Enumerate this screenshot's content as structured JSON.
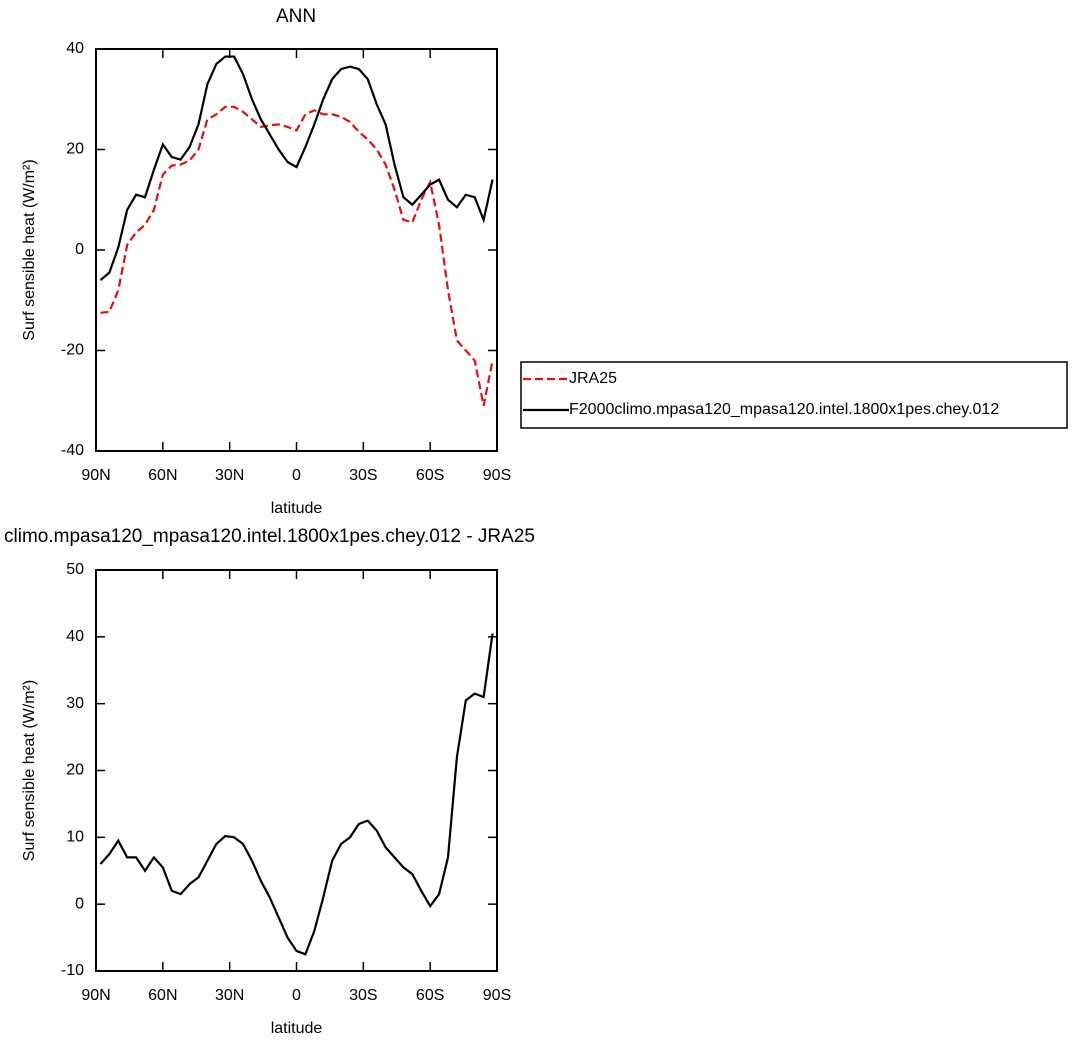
{
  "chart_data": [
    {
      "type": "line",
      "title": "ANN",
      "xlabel": "latitude",
      "ylabel": "Surf sensible heat (W/m²)",
      "x": [
        88,
        84,
        80,
        76,
        72,
        68,
        64,
        60,
        56,
        52,
        48,
        44,
        40,
        36,
        32,
        28,
        24,
        20,
        16,
        12,
        8,
        4,
        0,
        -4,
        -8,
        -12,
        -16,
        -20,
        -24,
        -28,
        -32,
        -36,
        -40,
        -44,
        -48,
        -52,
        -56,
        -60,
        -64,
        -68,
        -72,
        -76,
        -80,
        -84,
        -88
      ],
      "series": [
        {
          "name": "JRA25",
          "color": "#e01010",
          "line_style": "dashed",
          "values": [
            -12.5,
            -12.3,
            -8,
            1,
            3.5,
            5,
            8,
            15,
            16.8,
            17,
            17.8,
            20,
            26,
            27,
            28.5,
            28.5,
            27.5,
            26,
            24.5,
            24.8,
            25,
            24.5,
            23.8,
            27,
            27.8,
            27,
            27,
            26.5,
            25.5,
            23.5,
            22,
            20,
            17,
            12,
            6,
            5.5,
            10,
            13.5,
            5,
            -8,
            -18,
            -20,
            -22,
            -31,
            -22
          ]
        },
        {
          "name": "F2000climo.mpasa120_mpasa120.intel.1800x1pes.chey.012",
          "color": "#000000",
          "line_style": "solid",
          "values": [
            -6,
            -4.5,
            0.5,
            8,
            11,
            10.5,
            16,
            21,
            18.5,
            18,
            20.5,
            25,
            33,
            37,
            38.5,
            38.5,
            35,
            30,
            26,
            23,
            20,
            17.5,
            16.5,
            20.5,
            25,
            30,
            34,
            36,
            36.5,
            36,
            34,
            29,
            25,
            17,
            10.5,
            9,
            11,
            13,
            14,
            10,
            8.5,
            11,
            10.5,
            6,
            14
          ]
        }
      ],
      "xlim": [
        90,
        -90
      ],
      "xticks": [
        {
          "value": 90,
          "label": "90N"
        },
        {
          "value": 60,
          "label": "60N"
        },
        {
          "value": 30,
          "label": "30N"
        },
        0,
        {
          "value": -30,
          "label": "30S"
        },
        {
          "value": -60,
          "label": "60S"
        },
        {
          "value": -90,
          "label": "90S"
        }
      ],
      "ylim": [
        -40,
        40
      ],
      "yticks": [
        -40,
        -20,
        0,
        20,
        40
      ],
      "legend": "outside-right"
    },
    {
      "type": "line",
      "title": "climo.mpasa120_mpasa120.intel.1800x1pes.chey.012 - JRA25",
      "xlabel": "latitude",
      "ylabel": "Surf sensible heat (W/m²)",
      "x": [
        88,
        84,
        80,
        76,
        72,
        68,
        64,
        60,
        56,
        52,
        48,
        44,
        40,
        36,
        32,
        28,
        24,
        20,
        16,
        12,
        8,
        4,
        0,
        -4,
        -8,
        -12,
        -16,
        -20,
        -24,
        -28,
        -32,
        -36,
        -40,
        -44,
        -48,
        -52,
        -56,
        -60,
        -64,
        -68,
        -72,
        -76,
        -80,
        -84,
        -88
      ],
      "values": [
        6,
        7.5,
        9.5,
        7,
        7,
        5,
        7,
        5.5,
        2,
        1.5,
        3,
        4,
        6.5,
        9,
        10.2,
        10,
        9,
        6.5,
        3.5,
        1,
        -2,
        -5,
        -7,
        -7.5,
        -4,
        1,
        6.5,
        9,
        10,
        12,
        12.5,
        11,
        8.5,
        7,
        5.5,
        4.5,
        2,
        -0.3,
        1.5,
        7,
        22,
        30.5,
        31.5,
        31,
        40.5
      ],
      "color": "#000000",
      "xlim": [
        90,
        -90
      ],
      "xticks": [
        {
          "value": 90,
          "label": "90N"
        },
        {
          "value": 60,
          "label": "60N"
        },
        {
          "value": 30,
          "label": "30N"
        },
        0,
        {
          "value": -30,
          "label": "30S"
        },
        {
          "value": -60,
          "label": "60S"
        },
        {
          "value": -90,
          "label": "90S"
        }
      ],
      "ylim": [
        -10,
        50
      ],
      "yticks": [
        -10,
        0,
        10,
        20,
        30,
        40,
        50
      ]
    }
  ]
}
